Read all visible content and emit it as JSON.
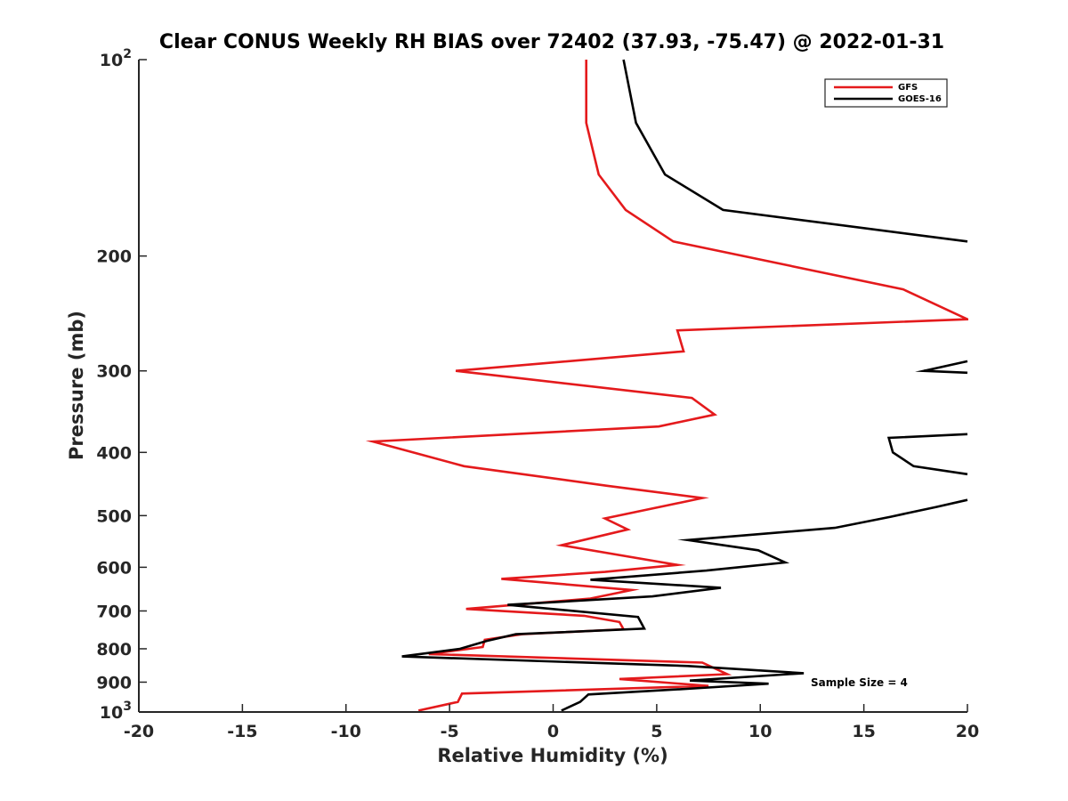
{
  "chart_data": {
    "type": "line",
    "title": "Clear CONUS Weekly RH BIAS over 72402 (37.93, -75.47) @ 2022-01-31",
    "xlabel": "Relative Humidity (%)",
    "ylabel": "Pressure (mb)",
    "xlim": [
      -20,
      20
    ],
    "ylim": [
      100,
      1000
    ],
    "yscale": "log",
    "yreversed": true,
    "grid": false,
    "legend_position": "top-right",
    "x_ticks": [
      {
        "value": -20,
        "label": "-20"
      },
      {
        "value": -15,
        "label": "-15"
      },
      {
        "value": -10,
        "label": "-10"
      },
      {
        "value": -5,
        "label": "-5"
      },
      {
        "value": 0,
        "label": "0"
      },
      {
        "value": 5,
        "label": "5"
      },
      {
        "value": 10,
        "label": "10"
      },
      {
        "value": 15,
        "label": "15"
      },
      {
        "value": 20,
        "label": "20"
      }
    ],
    "y_ticks": [
      {
        "value": 100,
        "base": "10",
        "exp": "2"
      },
      {
        "value": 200,
        "label": "200"
      },
      {
        "value": 300,
        "label": "300"
      },
      {
        "value": 400,
        "label": "400"
      },
      {
        "value": 500,
        "label": "500"
      },
      {
        "value": 600,
        "label": "600"
      },
      {
        "value": 700,
        "label": "700"
      },
      {
        "value": 800,
        "label": "800"
      },
      {
        "value": 900,
        "label": "900"
      },
      {
        "value": 1000,
        "base": "10",
        "exp": "3"
      }
    ],
    "annotation": "Sample Size = 4",
    "series": [
      {
        "name": "GFS",
        "color": "#e41a1c",
        "points": [
          {
            "x": 1.6,
            "p": 100
          },
          {
            "x": 1.6,
            "p": 125
          },
          {
            "x": 2.2,
            "p": 150
          },
          {
            "x": 3.5,
            "p": 170
          },
          {
            "x": 5.8,
            "p": 190
          },
          {
            "x": 16.9,
            "p": 225
          },
          {
            "x": 20.0,
            "p": 250
          },
          {
            "x": 6.0,
            "p": 260
          },
          {
            "x": 6.3,
            "p": 280
          },
          {
            "x": -4.7,
            "p": 300
          },
          {
            "x": 6.7,
            "p": 330
          },
          {
            "x": 7.8,
            "p": 350
          },
          {
            "x": 5.1,
            "p": 365
          },
          {
            "x": -8.7,
            "p": 385
          },
          {
            "x": -4.3,
            "p": 420
          },
          {
            "x": 2.6,
            "p": 450
          },
          {
            "x": 7.2,
            "p": 470
          },
          {
            "x": 2.5,
            "p": 505
          },
          {
            "x": 3.6,
            "p": 525
          },
          {
            "x": 0.4,
            "p": 555
          },
          {
            "x": 6.0,
            "p": 595
          },
          {
            "x": 2.5,
            "p": 610
          },
          {
            "x": -2.5,
            "p": 625
          },
          {
            "x": 3.8,
            "p": 650
          },
          {
            "x": 1.8,
            "p": 670
          },
          {
            "x": -4.2,
            "p": 695
          },
          {
            "x": 1.5,
            "p": 712
          },
          {
            "x": 3.2,
            "p": 728
          },
          {
            "x": 3.4,
            "p": 747
          },
          {
            "x": -1.5,
            "p": 760
          },
          {
            "x": -3.3,
            "p": 775
          },
          {
            "x": -3.4,
            "p": 795
          },
          {
            "x": -6.0,
            "p": 815
          },
          {
            "x": 7.2,
            "p": 840
          },
          {
            "x": 8.4,
            "p": 875
          },
          {
            "x": 3.2,
            "p": 890
          },
          {
            "x": 7.5,
            "p": 912
          },
          {
            "x": -4.4,
            "p": 937
          },
          {
            "x": -4.6,
            "p": 965
          },
          {
            "x": -6.5,
            "p": 995
          }
        ]
      },
      {
        "name": "GOES-16",
        "color": "#000000",
        "segments": [
          [
            {
              "x": 3.4,
              "p": 100
            },
            {
              "x": 4.0,
              "p": 125
            },
            {
              "x": 5.4,
              "p": 150
            },
            {
              "x": 8.2,
              "p": 170
            },
            {
              "x": 20.0,
              "p": 190
            }
          ],
          [
            {
              "x": 20.0,
              "p": 290
            },
            {
              "x": 17.9,
              "p": 300
            },
            {
              "x": 20.0,
              "p": 302
            }
          ],
          [
            {
              "x": 20.0,
              "p": 375
            },
            {
              "x": 16.2,
              "p": 380
            },
            {
              "x": 16.4,
              "p": 400
            },
            {
              "x": 17.4,
              "p": 420
            },
            {
              "x": 20.0,
              "p": 432
            }
          ],
          [
            {
              "x": 20.0,
              "p": 473
            },
            {
              "x": 18.5,
              "p": 485
            },
            {
              "x": 16.3,
              "p": 502
            },
            {
              "x": 13.6,
              "p": 522
            },
            {
              "x": 6.5,
              "p": 545
            },
            {
              "x": 9.9,
              "p": 565
            },
            {
              "x": 11.2,
              "p": 590
            },
            {
              "x": 7.4,
              "p": 607
            },
            {
              "x": 1.8,
              "p": 627
            },
            {
              "x": 8.1,
              "p": 645
            },
            {
              "x": 4.8,
              "p": 665
            },
            {
              "x": -2.2,
              "p": 685
            },
            {
              "x": 4.1,
              "p": 715
            },
            {
              "x": 4.4,
              "p": 745
            },
            {
              "x": -1.8,
              "p": 760
            },
            {
              "x": -3.2,
              "p": 778
            },
            {
              "x": -4.5,
              "p": 800
            },
            {
              "x": -7.3,
              "p": 822
            },
            {
              "x": 6.5,
              "p": 850
            },
            {
              "x": 12.1,
              "p": 872
            },
            {
              "x": 6.6,
              "p": 895
            },
            {
              "x": 10.4,
              "p": 905
            },
            {
              "x": 6.8,
              "p": 920
            },
            {
              "x": 1.7,
              "p": 940
            },
            {
              "x": 1.3,
              "p": 965
            },
            {
              "x": 0.4,
              "p": 995
            }
          ]
        ]
      }
    ]
  }
}
